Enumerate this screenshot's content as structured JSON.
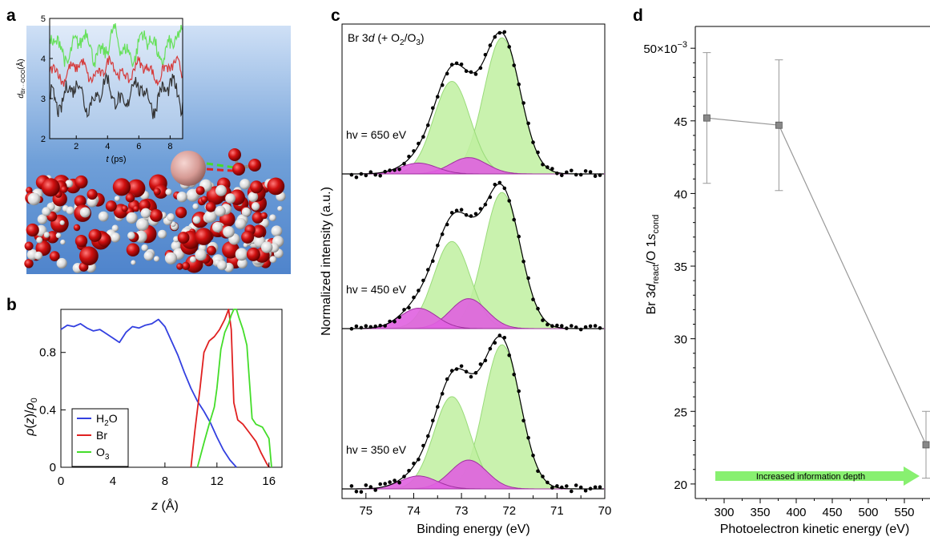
{
  "panels": {
    "a": {
      "label": "a",
      "inset": {
        "ylabel_main": "d",
        "ylabel_sub": "Br···OOO",
        "ylabel_unit": "(Å)",
        "xlabel_var": "t",
        "xlabel_unit": " (ps)",
        "x_ticks": [
          "2",
          "4",
          "6",
          "8"
        ],
        "y_ticks": [
          "2",
          "3",
          "4",
          "5"
        ],
        "colors": {
          "green": "#66e05a",
          "red": "#d63a3a",
          "gray": "#333333"
        }
      }
    },
    "b": {
      "label": "b",
      "legend": [
        {
          "text": "H",
          "sub": "2",
          "tail": "O",
          "color": "#3340e0"
        },
        {
          "text": "Br",
          "sub": "",
          "tail": "",
          "color": "#e02020"
        },
        {
          "text": "O",
          "sub": "3",
          "tail": "",
          "color": "#44dd2a"
        }
      ]
    },
    "c": {
      "label": "c",
      "title_prefix": "Br 3",
      "title_italic": "d",
      "title_mid": " (+ O",
      "title_sub1": "2",
      "title_sep": "/O",
      "title_sub2": "3",
      "title_end": ")",
      "spectra_labels": [
        "hv = 650 eV",
        "hv = 450 eV",
        "hv = 350 eV"
      ],
      "colors": {
        "green_fill": "#bff0a0",
        "green_line": "#9adb7a",
        "magenta_fill": "#e060e0",
        "magenta_line": "#a030a0",
        "fit_line": "#000000"
      }
    },
    "d": {
      "label": "d"
    }
  },
  "chart_data": [
    {
      "panel": "b",
      "type": "line",
      "title": "",
      "xlabel_var": "z",
      "xlabel_unit": " (Å)",
      "ylabel": "ρ(z)/ρ₀",
      "xlim": [
        0,
        17
      ],
      "ylim": [
        0,
        1.1
      ],
      "x_ticks": [
        "0",
        "4",
        "8",
        "12",
        "16"
      ],
      "y_ticks": [
        "0",
        "0.4",
        "0.8"
      ],
      "series": [
        {
          "name": "H2O",
          "color": "#3340e0",
          "x": [
            0,
            0.5,
            1,
            1.5,
            2,
            2.5,
            3,
            3.5,
            4,
            4.5,
            5,
            5.5,
            6,
            6.5,
            7,
            7.5,
            8,
            8.5,
            9,
            9.5,
            10,
            10.5,
            11,
            11.5,
            12,
            12.5,
            13,
            13.5
          ],
          "y": [
            0.96,
            0.99,
            0.98,
            1.0,
            0.97,
            0.95,
            0.96,
            0.93,
            0.9,
            0.87,
            0.94,
            0.98,
            0.97,
            0.99,
            1.0,
            1.03,
            0.98,
            0.88,
            0.78,
            0.66,
            0.55,
            0.46,
            0.39,
            0.31,
            0.21,
            0.12,
            0.05,
            0.0
          ]
        },
        {
          "name": "Br",
          "color": "#e02020",
          "x": [
            10.0,
            10.3,
            10.7,
            11.0,
            11.4,
            11.8,
            12.2,
            12.6,
            12.9,
            13.1,
            13.3,
            13.6,
            14.0,
            14.5,
            15.0,
            15.4,
            15.8,
            16.0
          ],
          "y": [
            0.0,
            0.25,
            0.55,
            0.8,
            0.88,
            0.91,
            0.96,
            1.03,
            1.1,
            0.96,
            0.45,
            0.33,
            0.3,
            0.24,
            0.18,
            0.1,
            0.03,
            0.0
          ]
        },
        {
          "name": "O3",
          "color": "#44dd2a",
          "x": [
            10.5,
            11.0,
            11.4,
            11.8,
            12.0,
            12.3,
            12.6,
            12.9,
            13.1,
            13.3,
            13.5,
            13.7,
            14.0,
            14.3,
            14.7,
            15.0,
            15.5,
            16.0,
            16.2
          ],
          "y": [
            0.0,
            0.17,
            0.3,
            0.42,
            0.55,
            0.82,
            0.94,
            1.0,
            1.06,
            1.1,
            1.1,
            1.04,
            0.96,
            0.85,
            0.34,
            0.3,
            0.28,
            0.2,
            0.0
          ]
        }
      ]
    },
    {
      "panel": "c",
      "type": "area",
      "title": "Br 3d (+ O2/O3)",
      "xlabel": "Binding energy (eV)",
      "ylabel": "Normalized intensity (a.u.)",
      "xlim": [
        75.5,
        70
      ],
      "x_ticks": [
        "75",
        "74",
        "73",
        "72",
        "71",
        "70"
      ],
      "components": [
        {
          "name": "green-low",
          "center_eV": 72.15,
          "role": "green"
        },
        {
          "name": "green-high",
          "center_eV": 73.2,
          "role": "green"
        },
        {
          "name": "magenta-low",
          "center_eV": 72.85,
          "role": "magenta"
        },
        {
          "name": "magenta-high",
          "center_eV": 73.9,
          "role": "magenta"
        }
      ],
      "spectra": [
        {
          "label": "hv = 650 eV",
          "amplitudes": [
            1.0,
            0.68,
            0.12,
            0.08
          ]
        },
        {
          "label": "hv = 450 eV",
          "amplitudes": [
            1.0,
            0.64,
            0.22,
            0.15
          ]
        },
        {
          "label": "hv = 350 eV",
          "amplitudes": [
            1.0,
            0.64,
            0.2,
            0.09
          ]
        }
      ]
    },
    {
      "panel": "d",
      "type": "scatter",
      "title": "",
      "xlabel": "Photoelectron kinetic energy (eV)",
      "ylabel": "Br 3d_react/O 1s_cond",
      "xlim": [
        260,
        580
      ],
      "ylim": [
        19,
        51.5
      ],
      "x_ticks": [
        "300",
        "350",
        "400",
        "450",
        "500",
        "550"
      ],
      "y_ticks": [
        "20",
        "25",
        "30",
        "35",
        "40",
        "45"
      ],
      "y_top_label": "50×10",
      "y_top_label_exp": "−3",
      "points": [
        {
          "x": 276,
          "y": 45.2,
          "err": 4.5
        },
        {
          "x": 376,
          "y": 44.7,
          "err": 4.5
        },
        {
          "x": 580,
          "y": 22.7,
          "err": 2.3
        }
      ],
      "annotation": "Increased information depth",
      "colors": {
        "marker": "#888888",
        "arrow": "#88f070",
        "line": "#999999"
      }
    }
  ]
}
